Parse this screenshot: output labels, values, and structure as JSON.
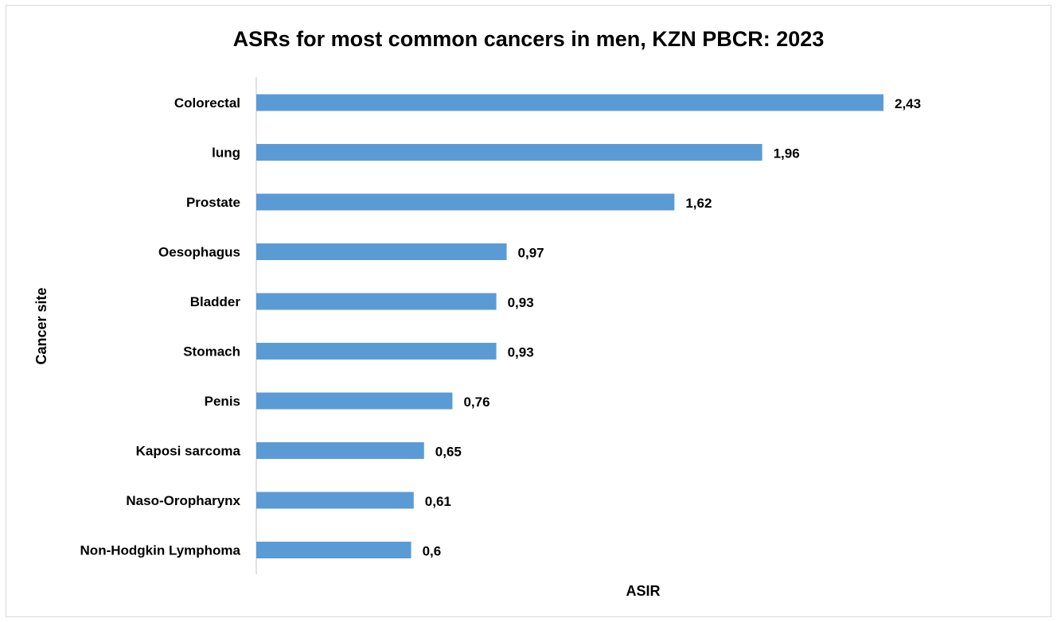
{
  "chart_data": {
    "type": "bar",
    "orientation": "horizontal",
    "title": "ASRs for most common cancers in men, KZN PBCR: 2023",
    "xlabel": "ASIR",
    "ylabel": "Cancer site",
    "categories": [
      "Colorectal",
      "lung",
      "Prostate",
      "Oesophagus",
      "Bladder",
      "Stomach",
      "Penis",
      "Kaposi sarcoma",
      "Naso-Oropharynx",
      "Non-Hodgkin Lymphoma"
    ],
    "values": [
      2.43,
      1.96,
      1.62,
      0.97,
      0.93,
      0.93,
      0.76,
      0.65,
      0.61,
      0.6
    ],
    "value_labels": [
      "2,43",
      "1,96",
      "1,62",
      "0,97",
      "0,93",
      "0,93",
      "0,76",
      "0,65",
      "0,61",
      "0,6"
    ],
    "xlim": [
      0,
      3.0
    ],
    "grid": false,
    "legend": "none",
    "colors": {
      "bar": "#5b9bd5",
      "axis": "#d9d9d9",
      "text": "#000000"
    }
  }
}
